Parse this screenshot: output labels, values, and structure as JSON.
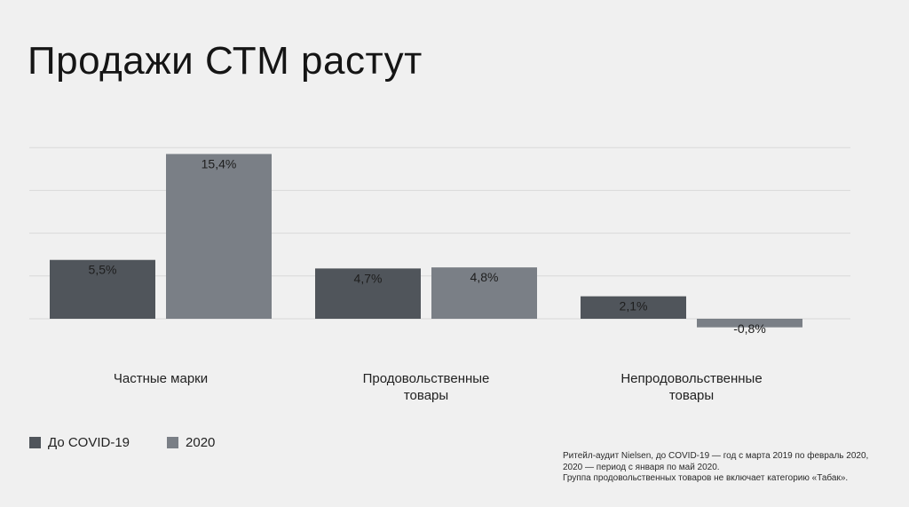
{
  "title": "Продажи СТМ растут",
  "colors": {
    "background": "#f0f0f0",
    "series_1": "#50555b",
    "series_2": "#7a7f86",
    "gridline": "#d9d9d9"
  },
  "chart_data": {
    "type": "bar",
    "categories": [
      "Частные марки",
      "Продовольственные товары",
      "Непродовольственные товары"
    ],
    "category_lines": [
      [
        "Частные марки"
      ],
      [
        "Продовольственные",
        "товары"
      ],
      [
        "Непродовольственные",
        "товары"
      ]
    ],
    "series": [
      {
        "name": "До COVID-19",
        "values": [
          5.5,
          4.7,
          2.1
        ],
        "labels": [
          "5,5%",
          "4,7%",
          "2,1%"
        ],
        "color": "#50555b"
      },
      {
        "name": "2020",
        "values": [
          15.4,
          4.8,
          -0.8
        ],
        "labels": [
          "15,4%",
          "4,8%",
          "-0,8%"
        ],
        "color": "#7a7f86"
      }
    ],
    "ylim": [
      -1,
      16
    ],
    "gridlines": [
      0,
      4,
      8,
      12,
      16
    ],
    "grid": true,
    "xlabel": "",
    "ylabel": "",
    "legend_position": "bottom-left"
  },
  "legend": {
    "items": [
      "До COVID-19",
      "2020"
    ]
  },
  "footnote": {
    "lines": [
      "Ритейл-аудит Nielsen, до COVID-19 — год с марта 2019 по февраль 2020,",
      "2020 — период с января по май 2020.",
      "Группа продовольственных товаров не включает категорию «Табак»."
    ]
  }
}
